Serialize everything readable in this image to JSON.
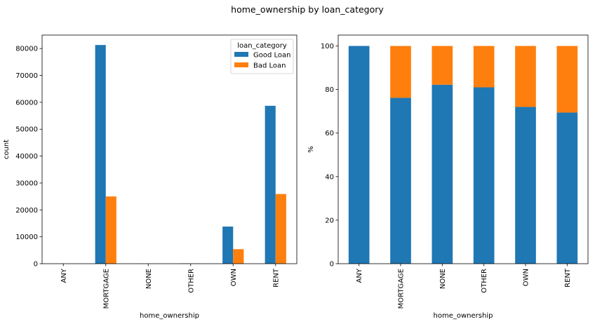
{
  "figure": {
    "suptitle": "home_ownership by loan_category"
  },
  "colors": {
    "good": "#1f77b4",
    "bad": "#ff7f0e"
  },
  "chart_data": [
    {
      "type": "bar",
      "title": "",
      "categories": [
        "ANY",
        "MORTGAGE",
        "NONE",
        "OTHER",
        "OWN",
        "RENT"
      ],
      "series": [
        {
          "name": "Good Loan",
          "values": [
            3,
            81300,
            40,
            120,
            13800,
            58700
          ]
        },
        {
          "name": "Bad Loan",
          "values": [
            0,
            25000,
            9,
            28,
            5400,
            25900
          ]
        }
      ],
      "xlabel": "home_ownership",
      "ylabel": "count",
      "ylim": [
        0,
        85000
      ],
      "yticks": [
        0,
        10000,
        20000,
        30000,
        40000,
        50000,
        60000,
        70000,
        80000
      ],
      "legend": {
        "title": "loan_category",
        "placement": "top-right"
      },
      "grid": false
    },
    {
      "type": "bar",
      "stacked": true,
      "title": "",
      "categories": [
        "ANY",
        "MORTGAGE",
        "NONE",
        "OTHER",
        "OWN",
        "RENT"
      ],
      "series": [
        {
          "name": "Good Loan",
          "values": [
            100,
            76.2,
            82.2,
            81.0,
            72.0,
            69.4
          ]
        },
        {
          "name": "Bad Loan",
          "values": [
            0,
            23.8,
            17.8,
            19.0,
            28.0,
            30.6
          ]
        }
      ],
      "xlabel": "home_ownership",
      "ylabel": "%",
      "ylim": [
        0,
        105
      ],
      "yticks": [
        0,
        20,
        40,
        60,
        80,
        100
      ],
      "grid": false
    }
  ]
}
